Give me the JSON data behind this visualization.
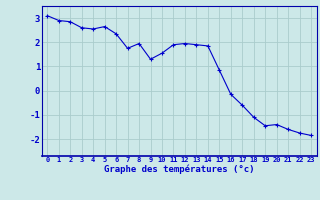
{
  "x": [
    0,
    1,
    2,
    3,
    4,
    5,
    6,
    7,
    8,
    9,
    10,
    11,
    12,
    13,
    14,
    15,
    16,
    17,
    18,
    19,
    20,
    21,
    22,
    23
  ],
  "y": [
    3.1,
    2.9,
    2.85,
    2.6,
    2.55,
    2.65,
    2.35,
    1.75,
    1.95,
    1.3,
    1.55,
    1.9,
    1.95,
    1.9,
    1.85,
    0.85,
    -0.15,
    -0.6,
    -1.1,
    -1.45,
    -1.4,
    -1.6,
    -1.75,
    -1.85
  ],
  "line_color": "#0000cc",
  "marker": "+",
  "marker_color": "#0000cc",
  "bg_color": "#cce8e8",
  "grid_color": "#aacccc",
  "axis_color": "#0000aa",
  "tick_color": "#0000cc",
  "xlabel": "Graphe des températures (°c)",
  "xlabel_color": "#0000cc",
  "xlim": [
    -0.5,
    23.5
  ],
  "ylim": [
    -2.7,
    3.5
  ],
  "yticks": [
    -2,
    -1,
    0,
    1,
    2,
    3
  ],
  "xticks": [
    0,
    1,
    2,
    3,
    4,
    5,
    6,
    7,
    8,
    9,
    10,
    11,
    12,
    13,
    14,
    15,
    16,
    17,
    18,
    19,
    20,
    21,
    22,
    23
  ]
}
